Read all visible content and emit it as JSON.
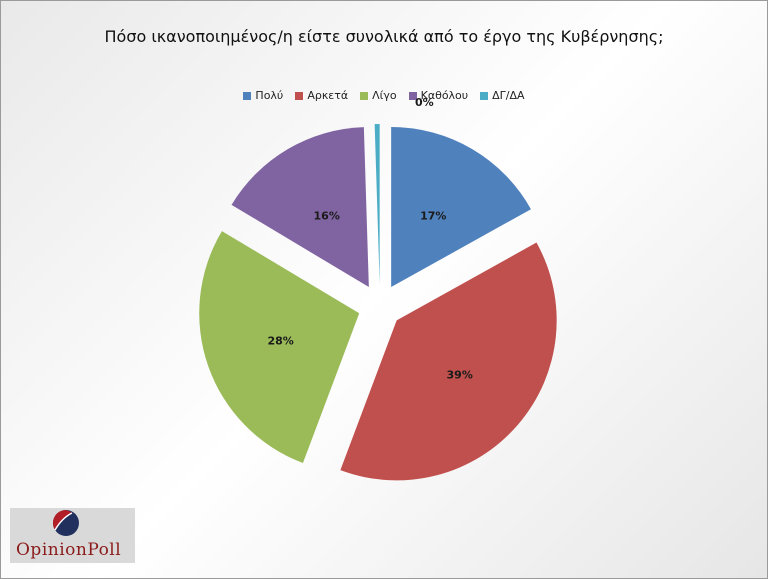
{
  "chart_data": {
    "type": "pie",
    "title": "Πόσο ικανοποιημένος/η είστε συνολικά από  το έργο της Κυβέρνησης;",
    "categories": [
      "Πολύ",
      "Αρκετά",
      "Λίγο",
      "Καθόλου",
      "ΔΓ/ΔΑ"
    ],
    "values": [
      17,
      39,
      28,
      16,
      0.5
    ],
    "data_labels": [
      "17%",
      "39%",
      "28%",
      "16%",
      "0%"
    ],
    "colors": [
      "#4f81bd",
      "#c0504d",
      "#9bbb59",
      "#8064a2",
      "#4bacc6"
    ],
    "legend_position": "top",
    "exploded": true
  },
  "logo": {
    "text": "OpinionPoll"
  }
}
